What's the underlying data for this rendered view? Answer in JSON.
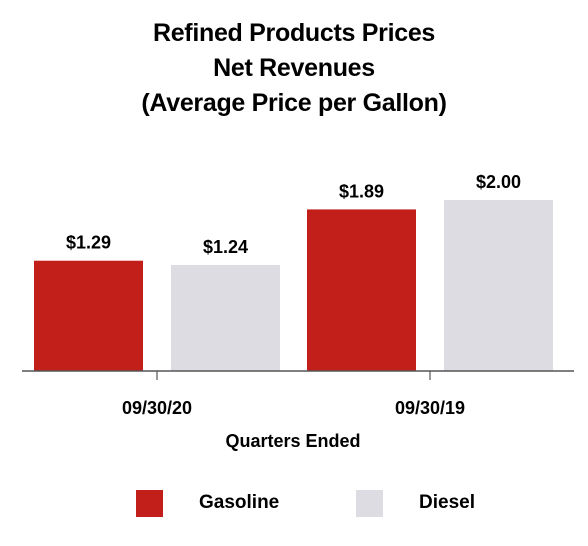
{
  "title": {
    "line1": "Refined Products Prices",
    "line2": "Net Revenues",
    "line3": "(Average Price per Gallon)"
  },
  "colors": {
    "gasoline": "#c21f1a",
    "diesel": "#dcdce2",
    "axis": "#555555"
  },
  "chart_data": {
    "type": "bar",
    "title": "Refined Products Prices Net Revenues (Average Price per Gallon)",
    "xlabel": "Quarters Ended",
    "ylabel": "",
    "categories": [
      "09/30/20",
      "09/30/19"
    ],
    "series": [
      {
        "name": "Gasoline",
        "values": [
          1.29,
          1.89
        ],
        "labels": [
          "$1.29",
          "$1.89"
        ]
      },
      {
        "name": "Diesel",
        "values": [
          1.24,
          2.0
        ],
        "labels": [
          "$1.24",
          "$2.00"
        ]
      }
    ],
    "ylim": [
      0,
      2.0
    ],
    "grid": false,
    "legend_position": "bottom"
  }
}
